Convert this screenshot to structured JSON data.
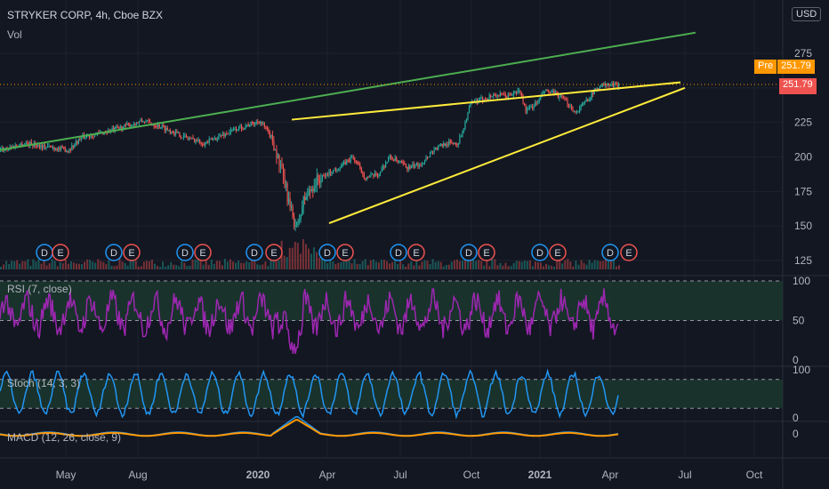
{
  "header": {
    "symbol": "STRYKER CORP, 4h, Cboe BZX",
    "volume_label": "Vol",
    "currency": "USD"
  },
  "badges": {
    "pre_label": "Pre",
    "pre_price": "251.79",
    "last_price": "251.79"
  },
  "colors": {
    "background": "#131722",
    "up": "#26a69a",
    "down": "#ef5350",
    "trend_green": "#4caf50",
    "trend_yellow": "#ffeb3b",
    "rsi": "#9c27b0",
    "stoch": "#2196f3",
    "macd_orange": "#ff9800"
  },
  "chart_data": [
    {
      "type": "candlestick",
      "title": "STRYKER CORP, 4h, Cboe BZX",
      "y_ticks": [
        125,
        150,
        175,
        200,
        225,
        250,
        275
      ],
      "ylim": [
        120,
        300
      ],
      "x_ticks": [
        "May",
        "Aug",
        "2020",
        "Apr",
        "Jul",
        "Oct",
        "2021",
        "Apr",
        "Jul",
        "Oct"
      ],
      "last_price": 251.79,
      "price_path": [
        [
          0,
          205
        ],
        [
          0.04,
          210
        ],
        [
          0.08,
          207
        ],
        [
          0.11,
          205
        ],
        [
          0.13,
          214
        ],
        [
          0.17,
          218
        ],
        [
          0.2,
          222
        ],
        [
          0.23,
          226
        ],
        [
          0.26,
          222
        ],
        [
          0.28,
          218
        ],
        [
          0.3,
          214
        ],
        [
          0.33,
          210
        ],
        [
          0.35,
          214
        ],
        [
          0.38,
          220
        ],
        [
          0.42,
          226
        ],
        [
          0.44,
          213
        ],
        [
          0.46,
          180
        ],
        [
          0.47,
          160
        ],
        [
          0.48,
          148
        ],
        [
          0.49,
          168
        ],
        [
          0.51,
          182
        ],
        [
          0.53,
          188
        ],
        [
          0.55,
          193
        ],
        [
          0.57,
          200
        ],
        [
          0.59,
          185
        ],
        [
          0.61,
          187
        ],
        [
          0.63,
          200
        ],
        [
          0.66,
          192
        ],
        [
          0.68,
          195
        ],
        [
          0.7,
          205
        ],
        [
          0.72,
          210
        ],
        [
          0.74,
          210
        ],
        [
          0.75,
          222
        ],
        [
          0.76,
          238
        ],
        [
          0.78,
          242
        ],
        [
          0.8,
          245
        ],
        [
          0.82,
          244
        ],
        [
          0.84,
          248
        ],
        [
          0.85,
          233
        ],
        [
          0.87,
          240
        ],
        [
          0.88,
          248
        ],
        [
          0.9,
          245
        ],
        [
          0.92,
          238
        ],
        [
          0.93,
          232
        ],
        [
          0.95,
          242
        ],
        [
          0.97,
          252
        ],
        [
          1.0,
          252
        ]
      ],
      "trendlines": [
        {
          "color": "green",
          "from": [
            0,
            205
          ],
          "to": [
            1,
            290
          ]
        },
        {
          "color": "yellow",
          "from": [
            0.42,
            227
          ],
          "to": [
            1,
            254
          ]
        },
        {
          "color": "yellow",
          "from": [
            0.47,
            152
          ],
          "to": [
            1,
            250
          ]
        }
      ],
      "events": [
        "D",
        "E",
        "D",
        "E",
        "D",
        "E",
        "D",
        "E",
        "D",
        "E",
        "D",
        "E",
        "D",
        "E",
        "D",
        "E",
        "D",
        "E",
        "D",
        "E"
      ]
    },
    {
      "type": "line",
      "title": "RSI (7, close)",
      "y_ticks": [
        0,
        50,
        100
      ],
      "ylim": [
        0,
        100
      ],
      "band": [
        50,
        100
      ]
    },
    {
      "type": "line",
      "title": "Stoch (14, 3, 3)",
      "y_ticks": [
        0,
        100
      ],
      "ylim": [
        0,
        100
      ],
      "band": [
        20,
        80
      ]
    },
    {
      "type": "line",
      "title": "MACD (12, 26, close, 9)",
      "y_ticks": [
        0
      ]
    }
  ]
}
